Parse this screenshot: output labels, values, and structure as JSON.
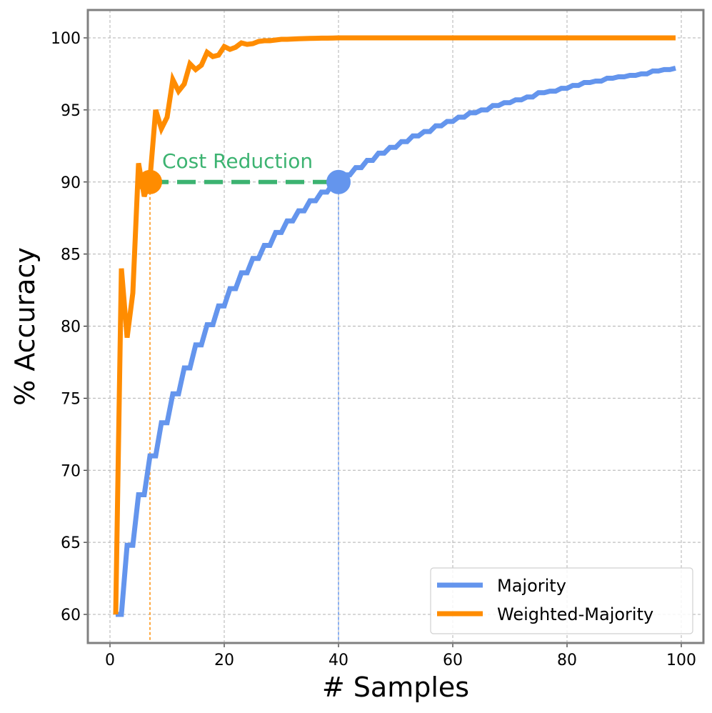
{
  "chart_data": {
    "type": "line",
    "title": "",
    "xlabel": "# Samples",
    "ylabel": "% Accuracy",
    "xlim": [
      -3.5,
      104
    ],
    "ylim": [
      58,
      102
    ],
    "xticks": [
      0,
      20,
      40,
      60,
      80,
      100
    ],
    "yticks": [
      60,
      65,
      70,
      75,
      80,
      85,
      90,
      95,
      100
    ],
    "grid": true,
    "legend_position": "bottom-right",
    "x": [
      1,
      2,
      3,
      4,
      5,
      6,
      7,
      8,
      9,
      10,
      11,
      12,
      13,
      14,
      15,
      16,
      17,
      18,
      19,
      20,
      21,
      22,
      23,
      24,
      25,
      26,
      27,
      28,
      29,
      30,
      31,
      32,
      33,
      34,
      35,
      36,
      37,
      38,
      39,
      40,
      41,
      42,
      43,
      44,
      45,
      46,
      47,
      48,
      49,
      50,
      51,
      52,
      53,
      54,
      55,
      56,
      57,
      58,
      59,
      60,
      61,
      62,
      63,
      64,
      65,
      66,
      67,
      68,
      69,
      70,
      71,
      72,
      73,
      74,
      75,
      76,
      77,
      78,
      79,
      80,
      81,
      82,
      83,
      84,
      85,
      86,
      87,
      88,
      89,
      90,
      91,
      92,
      93,
      94,
      95,
      96,
      97,
      98,
      99
    ],
    "series": [
      {
        "name": "Majority",
        "color": "#6495ED",
        "values": [
          60,
          60,
          64.8,
          64.8,
          68.3,
          68.3,
          71.0,
          71.0,
          73.3,
          73.3,
          75.3,
          75.3,
          77.1,
          77.1,
          78.7,
          78.7,
          80.1,
          80.1,
          81.4,
          81.4,
          82.6,
          82.6,
          83.7,
          83.7,
          84.7,
          84.7,
          85.6,
          85.6,
          86.5,
          86.5,
          87.3,
          87.3,
          88.0,
          88.0,
          88.7,
          88.7,
          89.3,
          89.3,
          89.9,
          89.9,
          90.5,
          90.5,
          91.0,
          91.0,
          91.5,
          91.5,
          92.0,
          92.0,
          92.4,
          92.4,
          92.8,
          92.8,
          93.2,
          93.2,
          93.5,
          93.5,
          93.9,
          93.9,
          94.2,
          94.2,
          94.5,
          94.5,
          94.8,
          94.8,
          95.0,
          95.0,
          95.3,
          95.3,
          95.5,
          95.5,
          95.7,
          95.7,
          95.9,
          95.9,
          96.2,
          96.2,
          96.3,
          96.3,
          96.5,
          96.5,
          96.7,
          96.7,
          96.9,
          96.9,
          97.0,
          97.0,
          97.2,
          97.2,
          97.3,
          97.3,
          97.4,
          97.4,
          97.5,
          97.5,
          97.7,
          97.7,
          97.8,
          97.8,
          97.9
        ]
      },
      {
        "name": "Weighted-Majority",
        "color": "#FF8C00",
        "values": [
          60,
          84.0,
          79.2,
          82.3,
          91.3,
          89.0,
          90.2,
          95.0,
          93.7,
          94.5,
          97.1,
          96.3,
          96.8,
          98.2,
          97.8,
          98.1,
          99.0,
          98.7,
          98.8,
          99.4,
          99.2,
          99.35,
          99.65,
          99.55,
          99.6,
          99.75,
          99.8,
          99.8,
          99.85,
          99.9,
          99.9,
          99.92,
          99.94,
          99.95,
          99.96,
          99.97,
          99.98,
          99.98,
          99.99,
          100,
          100,
          100,
          100,
          100,
          100,
          100,
          100,
          100,
          100,
          100,
          100,
          100,
          100,
          100,
          100,
          100,
          100,
          100,
          100,
          100,
          100,
          100,
          100,
          100,
          100,
          100,
          100,
          100,
          100,
          100,
          100,
          100,
          100,
          100,
          100,
          100,
          100,
          100,
          100,
          100,
          100,
          100,
          100,
          100,
          100,
          100,
          100,
          100,
          100,
          100,
          100,
          100,
          100,
          100,
          100,
          100,
          100,
          100,
          100
        ]
      }
    ],
    "annotations": {
      "label": "Cost Reduction",
      "color": "#3CB371",
      "level": 90,
      "from_x": 7,
      "to_x": 40
    }
  }
}
